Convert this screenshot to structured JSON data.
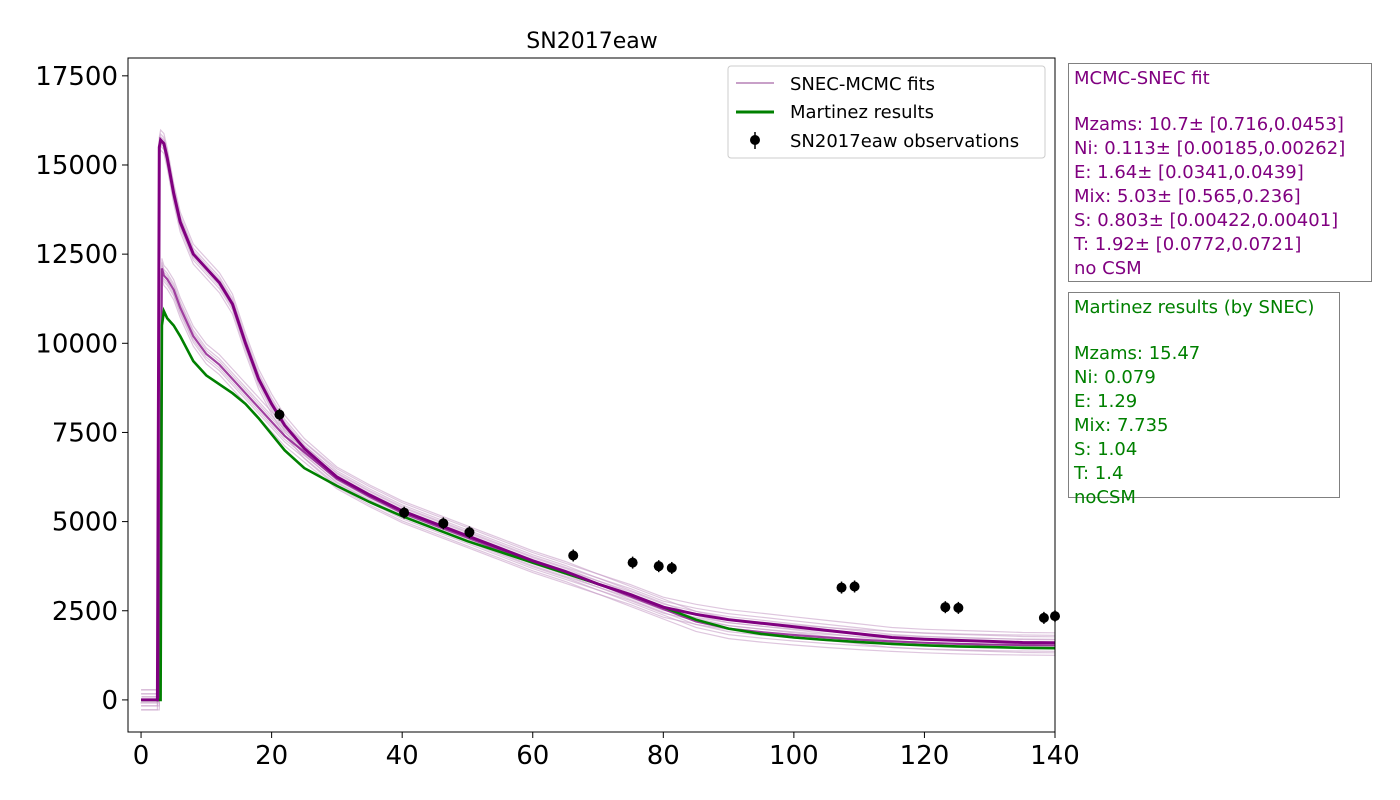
{
  "colors": {
    "mcmc": "#800080",
    "mcmc_light": "#c8a0c8",
    "martinez": "#008000",
    "observations": "#000000"
  },
  "chart_data": {
    "type": "line",
    "title": "SN2017eaw",
    "xlabel": "",
    "ylabel": "",
    "xlim": [
      -2,
      140
    ],
    "ylim": [
      -900,
      18000
    ],
    "xticks": [
      0,
      20,
      40,
      60,
      80,
      100,
      120,
      140
    ],
    "yticks": [
      0,
      2500,
      5000,
      7500,
      10000,
      12500,
      15000,
      17500
    ],
    "grid": false,
    "legend_position": "top-right",
    "legend": [
      "SNEC-MCMC fits",
      "Martinez results",
      "SN2017eaw observations"
    ],
    "series": [
      {
        "name": "SNEC-MCMC fits",
        "style": "line",
        "note_group": "main",
        "x": [
          0,
          2.5,
          2.8,
          3,
          3.5,
          4,
          5,
          6,
          8,
          10,
          12,
          14,
          16,
          18,
          20,
          22,
          25,
          30,
          35,
          40,
          45,
          50,
          55,
          60,
          65,
          70,
          75,
          80,
          85,
          90,
          95,
          100,
          105,
          110,
          115,
          120,
          125,
          130,
          135,
          140
        ],
        "y": [
          0,
          0,
          15500,
          15700,
          15600,
          15200,
          14200,
          13400,
          12500,
          12100,
          11700,
          11100,
          10000,
          9000,
          8300,
          7700,
          7050,
          6250,
          5750,
          5300,
          4950,
          4600,
          4250,
          3900,
          3600,
          3250,
          2950,
          2600,
          2400,
          2250,
          2150,
          2050,
          1950,
          1850,
          1750,
          1700,
          1670,
          1640,
          1610,
          1600
        ]
      },
      {
        "name": "",
        "style": "line",
        "note_group": "secondary",
        "x": [
          0,
          2.8,
          3.2,
          3.5,
          4,
          5,
          6,
          8,
          10,
          12,
          14,
          16,
          18,
          20,
          22,
          25,
          30,
          35,
          40,
          45,
          50,
          55,
          60,
          65,
          70,
          75,
          80,
          85,
          90,
          95,
          100,
          105,
          110,
          115,
          120,
          125,
          130,
          135,
          140
        ],
        "y": [
          0,
          0,
          12100,
          11900,
          11800,
          11500,
          11000,
          10200,
          9700,
          9400,
          9000,
          8600,
          8200,
          7800,
          7400,
          6950,
          6200,
          5700,
          5250,
          4900,
          4550,
          4200,
          3850,
          3550,
          3250,
          2900,
          2550,
          2200,
          2000,
          1900,
          1820,
          1750,
          1690,
          1640,
          1600,
          1570,
          1550,
          1540,
          1530
        ]
      },
      {
        "name": "Martinez results",
        "style": "line",
        "x": [
          0,
          3,
          3.2,
          3.5,
          4,
          5,
          6,
          8,
          10,
          12,
          14,
          16,
          18,
          20,
          22,
          25,
          30,
          35,
          40,
          45,
          50,
          55,
          60,
          65,
          70,
          75,
          80,
          85,
          90,
          95,
          100,
          105,
          110,
          115,
          120,
          125,
          130,
          135,
          140
        ],
        "y": [
          0,
          0,
          10500,
          10900,
          10700,
          10500,
          10200,
          9500,
          9100,
          8850,
          8600,
          8300,
          7900,
          7450,
          7000,
          6500,
          6000,
          5550,
          5150,
          4800,
          4450,
          4150,
          3850,
          3550,
          3250,
          2950,
          2600,
          2250,
          2000,
          1850,
          1750,
          1680,
          1620,
          1570,
          1530,
          1500,
          1480,
          1460,
          1450
        ]
      },
      {
        "name": "SN2017eaw observations",
        "style": "scatter",
        "x": [
          21.2,
          40.3,
          46.3,
          50.3,
          66.2,
          75.3,
          79.3,
          81.3,
          107.3,
          109.3,
          123.2,
          125.2,
          138.3,
          140
        ],
        "y": [
          8000,
          5250,
          4950,
          4700,
          4050,
          3850,
          3750,
          3700,
          3150,
          3180,
          2600,
          2580,
          2300,
          2350
        ]
      }
    ]
  },
  "info_boxes": {
    "mcmc": {
      "title": "MCMC-SNEC fit",
      "lines": [
        "Mzams: 10.7± [0.716,0.0453]",
        "Ni: 0.113± [0.00185,0.00262]",
        "E: 1.64± [0.0341,0.0439]",
        "Mix: 5.03± [0.565,0.236]",
        "S: 0.803± [0.00422,0.00401]",
        "T: 1.92± [0.0772,0.0721]",
        "no CSM"
      ]
    },
    "martinez": {
      "title": "Martinez results (by SNEC)",
      "lines": [
        "Mzams: 15.47",
        "Ni: 0.079",
        "E: 1.29",
        "Mix: 7.735",
        "S: 1.04",
        "T: 1.4",
        "noCSM"
      ]
    }
  }
}
